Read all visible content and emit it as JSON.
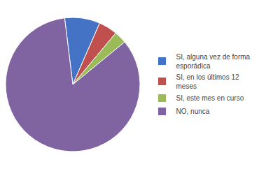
{
  "chart_data": {
    "type": "pie",
    "categories": [
      "SI, alguna vez de forma\nesporádica",
      "SI, en los últimos 12\nmeses",
      "SI, este mes en curso",
      "NO, nunca"
    ],
    "values": [
      8.5,
      4.5,
      3.0,
      84.0
    ],
    "colors": [
      "#4472C4",
      "#C0504D",
      "#9BBB59",
      "#8064A2"
    ],
    "legend": "right"
  }
}
